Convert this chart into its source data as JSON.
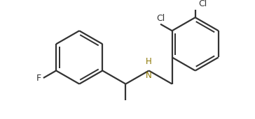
{
  "background_color": "#ffffff",
  "line_color": "#333333",
  "label_color": "#333333",
  "nh_color": "#8B7500",
  "F_label": "F",
  "Cl1_label": "Cl",
  "Cl2_label": "Cl",
  "NH_label": "H\nN",
  "line_width": 1.6,
  "figsize": [
    3.64,
    1.71
  ],
  "dpi": 100,
  "xlim": [
    0.0,
    7.2
  ],
  "ylim": [
    -0.3,
    3.8
  ]
}
